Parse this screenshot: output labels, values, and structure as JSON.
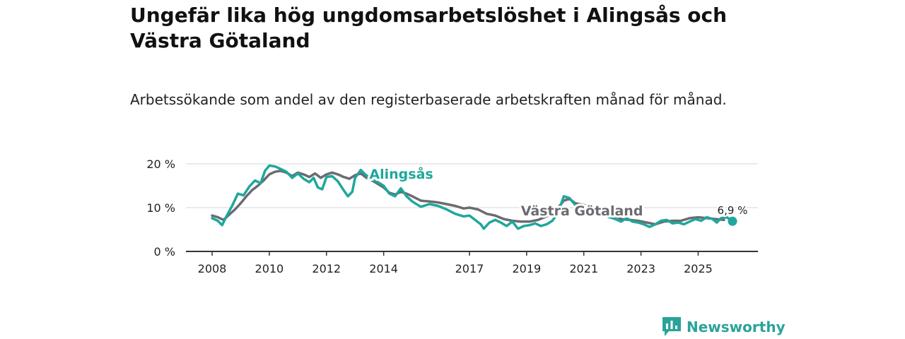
{
  "title": "Ungefär lika hög ungdomsarbetslöshet i Alingsås och Västra Götaland",
  "subtitle": "Arbetssökande som andel av den registerbaserade arbetskraften månad för månad.",
  "brand": {
    "name": "Newsworthy",
    "color": "#2aa39a"
  },
  "chart_data": {
    "type": "line",
    "y_tick_labels": [
      "0 %",
      "10 %",
      "20 %"
    ],
    "y_ticks": [
      0,
      10,
      20
    ],
    "ylim": [
      0,
      20
    ],
    "xlim": [
      2008,
      2026.2
    ],
    "x_tick_labels": [
      "2008",
      "2010",
      "2012",
      "2014",
      "2017",
      "2019",
      "2021",
      "2023",
      "2025"
    ],
    "x_ticks": [
      2008,
      2010,
      2012,
      2014,
      2017,
      2019,
      2021,
      2023,
      2025
    ],
    "last_value_label": "6,9 %",
    "series": [
      {
        "name": "Västra Götaland",
        "color": "#6b6b72",
        "points": [
          [
            2008.0,
            8.2
          ],
          [
            2008.2,
            7.8
          ],
          [
            2008.4,
            7.2
          ],
          [
            2008.6,
            8.4
          ],
          [
            2008.8,
            9.6
          ],
          [
            2009.0,
            11.0
          ],
          [
            2009.2,
            12.6
          ],
          [
            2009.4,
            14.0
          ],
          [
            2009.6,
            15.0
          ],
          [
            2009.8,
            16.2
          ],
          [
            2010.0,
            17.6
          ],
          [
            2010.2,
            18.2
          ],
          [
            2010.4,
            18.4
          ],
          [
            2010.6,
            18.0
          ],
          [
            2010.8,
            17.2
          ],
          [
            2011.0,
            18.0
          ],
          [
            2011.2,
            17.6
          ],
          [
            2011.4,
            17.0
          ],
          [
            2011.6,
            17.8
          ],
          [
            2011.8,
            16.8
          ],
          [
            2012.0,
            17.6
          ],
          [
            2012.2,
            18.0
          ],
          [
            2012.4,
            17.6
          ],
          [
            2012.6,
            17.0
          ],
          [
            2012.8,
            16.6
          ],
          [
            2013.0,
            17.4
          ],
          [
            2013.2,
            17.8
          ],
          [
            2013.4,
            16.8
          ],
          [
            2013.6,
            16.2
          ],
          [
            2013.8,
            15.4
          ],
          [
            2014.0,
            14.6
          ],
          [
            2014.2,
            13.4
          ],
          [
            2014.4,
            13.0
          ],
          [
            2014.6,
            13.6
          ],
          [
            2014.8,
            13.2
          ],
          [
            2015.0,
            12.6
          ],
          [
            2015.3,
            11.6
          ],
          [
            2015.6,
            11.4
          ],
          [
            2015.9,
            11.2
          ],
          [
            2016.2,
            10.8
          ],
          [
            2016.5,
            10.4
          ],
          [
            2016.8,
            9.8
          ],
          [
            2017.0,
            10.0
          ],
          [
            2017.3,
            9.6
          ],
          [
            2017.6,
            8.6
          ],
          [
            2017.9,
            8.2
          ],
          [
            2018.2,
            7.4
          ],
          [
            2018.5,
            7.0
          ],
          [
            2018.8,
            6.8
          ],
          [
            2019.1,
            6.8
          ],
          [
            2019.4,
            7.2
          ],
          [
            2019.7,
            8.0
          ],
          [
            2020.0,
            9.2
          ],
          [
            2020.3,
            11.6
          ],
          [
            2020.5,
            12.0
          ],
          [
            2020.7,
            11.0
          ],
          [
            2021.0,
            10.6
          ],
          [
            2021.3,
            10.0
          ],
          [
            2021.6,
            9.4
          ],
          [
            2022.0,
            8.4
          ],
          [
            2022.3,
            7.4
          ],
          [
            2022.6,
            7.2
          ],
          [
            2022.9,
            7.0
          ],
          [
            2023.2,
            6.6
          ],
          [
            2023.5,
            6.2
          ],
          [
            2023.8,
            6.8
          ],
          [
            2024.1,
            7.0
          ],
          [
            2024.4,
            7.0
          ],
          [
            2024.7,
            7.6
          ],
          [
            2025.0,
            7.8
          ],
          [
            2025.3,
            7.6
          ],
          [
            2025.6,
            7.4
          ],
          [
            2025.9,
            7.2
          ]
        ]
      },
      {
        "name": "Alingsås",
        "color": "#1fa79b",
        "points": [
          [
            2008.0,
            7.6
          ],
          [
            2008.2,
            7.0
          ],
          [
            2008.35,
            6.0
          ],
          [
            2008.5,
            8.0
          ],
          [
            2008.7,
            10.4
          ],
          [
            2008.9,
            13.2
          ],
          [
            2009.1,
            12.8
          ],
          [
            2009.3,
            14.8
          ],
          [
            2009.5,
            16.2
          ],
          [
            2009.7,
            15.6
          ],
          [
            2009.85,
            18.4
          ],
          [
            2010.0,
            19.6
          ],
          [
            2010.2,
            19.4
          ],
          [
            2010.4,
            18.8
          ],
          [
            2010.6,
            18.2
          ],
          [
            2010.8,
            16.8
          ],
          [
            2011.0,
            17.8
          ],
          [
            2011.2,
            16.6
          ],
          [
            2011.4,
            15.8
          ],
          [
            2011.55,
            16.8
          ],
          [
            2011.7,
            14.6
          ],
          [
            2011.85,
            14.2
          ],
          [
            2012.0,
            17.0
          ],
          [
            2012.2,
            17.2
          ],
          [
            2012.4,
            16.0
          ],
          [
            2012.6,
            14.0
          ],
          [
            2012.75,
            12.6
          ],
          [
            2012.9,
            13.6
          ],
          [
            2013.0,
            16.8
          ],
          [
            2013.2,
            18.6
          ],
          [
            2013.35,
            17.6
          ],
          [
            2013.55,
            16.6
          ],
          [
            2013.8,
            15.8
          ],
          [
            2014.0,
            15.0
          ],
          [
            2014.2,
            13.2
          ],
          [
            2014.4,
            12.6
          ],
          [
            2014.6,
            14.4
          ],
          [
            2014.8,
            12.6
          ],
          [
            2015.0,
            11.4
          ],
          [
            2015.3,
            10.2
          ],
          [
            2015.6,
            10.8
          ],
          [
            2015.9,
            10.4
          ],
          [
            2016.2,
            9.6
          ],
          [
            2016.5,
            8.6
          ],
          [
            2016.8,
            8.0
          ],
          [
            2017.0,
            8.2
          ],
          [
            2017.2,
            7.2
          ],
          [
            2017.4,
            6.2
          ],
          [
            2017.5,
            5.2
          ],
          [
            2017.7,
            6.6
          ],
          [
            2017.9,
            7.2
          ],
          [
            2018.1,
            6.6
          ],
          [
            2018.3,
            5.8
          ],
          [
            2018.5,
            6.8
          ],
          [
            2018.7,
            5.2
          ],
          [
            2018.9,
            5.8
          ],
          [
            2019.1,
            6.0
          ],
          [
            2019.3,
            6.4
          ],
          [
            2019.5,
            5.8
          ],
          [
            2019.7,
            6.2
          ],
          [
            2019.9,
            7.0
          ],
          [
            2020.1,
            8.8
          ],
          [
            2020.3,
            12.6
          ],
          [
            2020.5,
            12.2
          ],
          [
            2020.7,
            10.6
          ],
          [
            2020.9,
            9.8
          ],
          [
            2021.1,
            10.0
          ],
          [
            2021.3,
            9.6
          ],
          [
            2021.6,
            8.6
          ],
          [
            2021.9,
            7.8
          ],
          [
            2022.1,
            7.4
          ],
          [
            2022.3,
            6.8
          ],
          [
            2022.5,
            7.6
          ],
          [
            2022.7,
            6.8
          ],
          [
            2022.9,
            6.6
          ],
          [
            2023.1,
            6.2
          ],
          [
            2023.3,
            5.6
          ],
          [
            2023.5,
            6.2
          ],
          [
            2023.7,
            7.0
          ],
          [
            2023.9,
            7.2
          ],
          [
            2024.1,
            6.4
          ],
          [
            2024.3,
            6.6
          ],
          [
            2024.5,
            6.2
          ],
          [
            2024.7,
            6.8
          ],
          [
            2024.9,
            7.4
          ],
          [
            2025.1,
            7.0
          ],
          [
            2025.3,
            7.8
          ],
          [
            2025.5,
            7.4
          ],
          [
            2025.65,
            6.6
          ],
          [
            2025.8,
            7.6
          ],
          [
            2026.0,
            7.8
          ],
          [
            2026.2,
            6.9
          ]
        ]
      }
    ]
  }
}
